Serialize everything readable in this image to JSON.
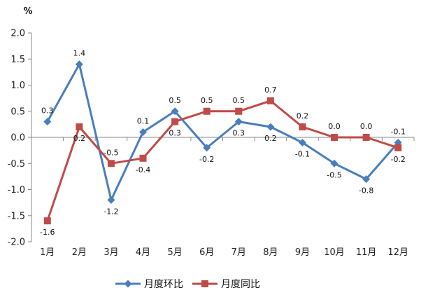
{
  "chart_data": {
    "type": "line",
    "unit": "%",
    "categories": [
      "1月",
      "2月",
      "3月",
      "4月",
      "5月",
      "6月",
      "7月",
      "8月",
      "9月",
      "10月",
      "11月",
      "12月"
    ],
    "ylim": [
      -2.0,
      2.0
    ],
    "ytick_step": 0.5,
    "ytick_labels": [
      "2.0",
      "1.5",
      "1.0",
      "0.5",
      "0.0",
      "-0.5",
      "-1.0",
      "-1.5",
      "-2.0"
    ],
    "grid": false,
    "legend_position": "bottom",
    "series": [
      {
        "name": "月度环比",
        "color": "#4a7ebb",
        "marker": "diamond",
        "values": [
          0.3,
          1.4,
          -1.2,
          0.1,
          0.5,
          -0.2,
          0.3,
          0.2,
          -0.1,
          -0.5,
          -0.8,
          -0.1
        ],
        "labels": [
          "0.3",
          "1.4",
          "-1.2",
          "0.1",
          "0.5",
          "-0.2",
          "0.3",
          "0.2",
          "-0.1",
          "-0.5",
          "-0.8",
          "-0.1"
        ]
      },
      {
        "name": "月度同比",
        "color": "#be4b48",
        "marker": "square",
        "values": [
          -1.6,
          0.2,
          -0.5,
          -0.4,
          0.3,
          0.5,
          0.5,
          0.7,
          0.2,
          0.0,
          0.0,
          -0.2
        ],
        "labels": [
          "-1.6",
          "0.2",
          "-0.5",
          "-0.4",
          "0.3",
          "0.5",
          "0.5",
          "0.7",
          "0.2",
          "0.0",
          "0.0",
          "-0.2"
        ]
      }
    ]
  }
}
